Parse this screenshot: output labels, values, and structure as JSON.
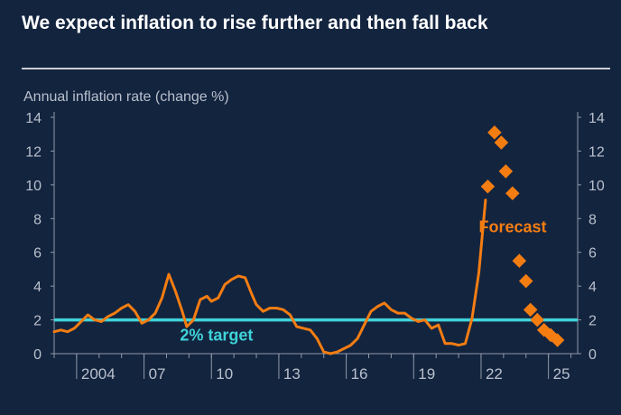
{
  "header": {
    "title": "We expect inflation to rise further and then fall back"
  },
  "colors": {
    "background": "#13243f",
    "inflation_line": "#f47d12",
    "forecast_markers": "#f47d12",
    "target_line": "#3fd3d9",
    "axis_text": "#b9c0cc",
    "axis_line": "#8f99a8"
  },
  "chart_data": {
    "type": "line",
    "ylabel": "Annual inflation rate (change %)",
    "ylim": [
      0,
      14
    ],
    "yticks": [
      0,
      2,
      4,
      6,
      8,
      10,
      12,
      14
    ],
    "xlim": [
      2003.0,
      2026.3
    ],
    "xtick_positions": [
      2004,
      2007,
      2010,
      2013,
      2016,
      2019,
      2022,
      2025
    ],
    "xtick_labels": [
      "2004",
      "07",
      "10",
      "13",
      "16",
      "19",
      "22",
      "25"
    ],
    "grid": false,
    "series": [
      {
        "kind": "actual",
        "x": [
          2003.0,
          2003.3,
          2003.6,
          2003.9,
          2004.2,
          2004.5,
          2004.8,
          2005.1,
          2005.4,
          2005.7,
          2006.0,
          2006.3,
          2006.6,
          2006.9,
          2007.2,
          2007.5,
          2007.8,
          2008.1,
          2008.4,
          2008.7,
          2008.9,
          2009.2,
          2009.5,
          2009.8,
          2010.0,
          2010.3,
          2010.6,
          2010.9,
          2011.2,
          2011.5,
          2011.8,
          2012.0,
          2012.3,
          2012.6,
          2012.9,
          2013.2,
          2013.5,
          2013.8,
          2014.1,
          2014.4,
          2014.7,
          2015.0,
          2015.3,
          2015.6,
          2015.9,
          2016.2,
          2016.5,
          2016.8,
          2017.1,
          2017.4,
          2017.7,
          2018.0,
          2018.3,
          2018.6,
          2018.9,
          2019.2,
          2019.5,
          2019.8,
          2020.1,
          2020.4,
          2020.7,
          2021.0,
          2021.3,
          2021.6,
          2021.9,
          2022.2
        ],
        "values": [
          1.3,
          1.4,
          1.3,
          1.5,
          1.9,
          2.3,
          2.0,
          1.9,
          2.2,
          2.4,
          2.7,
          2.9,
          2.5,
          1.8,
          2.0,
          2.4,
          3.3,
          4.7,
          3.7,
          2.5,
          1.6,
          2.0,
          3.2,
          3.4,
          3.1,
          3.3,
          4.1,
          4.4,
          4.6,
          4.5,
          3.5,
          2.9,
          2.5,
          2.7,
          2.7,
          2.6,
          2.3,
          1.6,
          1.5,
          1.4,
          0.9,
          0.1,
          0.0,
          0.1,
          0.3,
          0.5,
          0.9,
          1.7,
          2.5,
          2.8,
          3.0,
          2.6,
          2.4,
          2.4,
          2.1,
          1.9,
          2.0,
          1.5,
          1.7,
          0.6,
          0.6,
          0.5,
          0.6,
          2.1,
          4.8,
          9.1
        ]
      },
      {
        "kind": "forecast",
        "x": [
          2022.3,
          2022.6,
          2022.9,
          2023.1,
          2023.4,
          2023.7,
          2024.0,
          2024.2,
          2024.5,
          2024.8,
          2025.1,
          2025.4
        ],
        "values": [
          9.9,
          13.1,
          12.5,
          10.8,
          9.5,
          5.5,
          4.3,
          2.6,
          2.0,
          1.4,
          1.1,
          0.8
        ]
      }
    ],
    "target": {
      "value": 2,
      "label": "2% target"
    },
    "annotations": [
      {
        "text": "Forecast"
      }
    ]
  }
}
